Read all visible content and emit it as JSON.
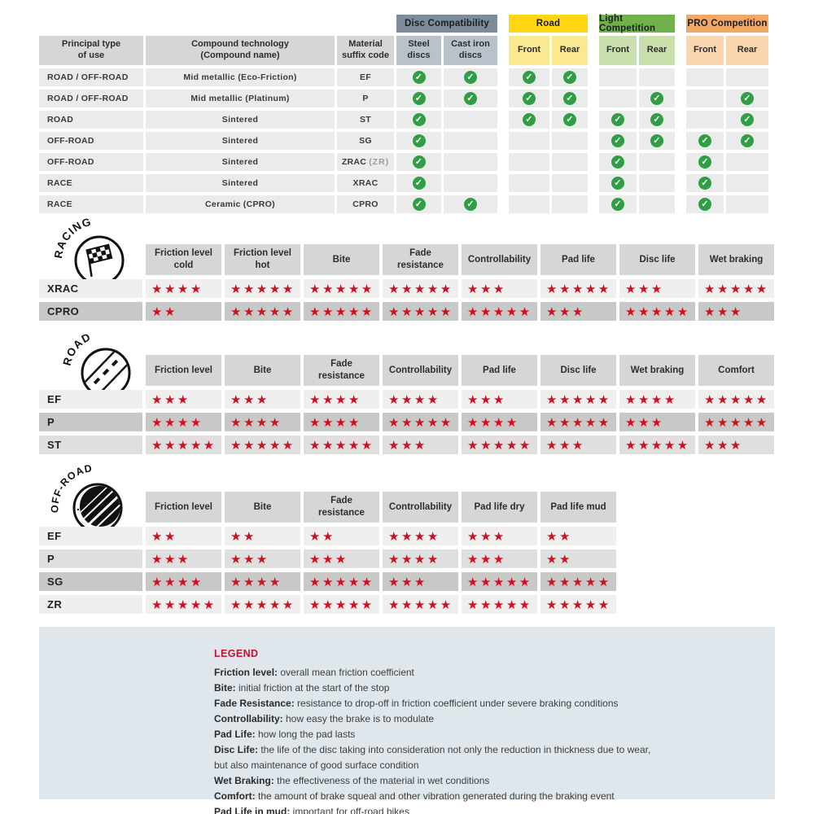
{
  "colors": {
    "check_green": "#2f9e44",
    "star_red": "#d30f1e",
    "disc_group": "#7c8c9a",
    "road_group": "#ffd60f",
    "light_group": "#71b14b",
    "pro_group": "#f2a765",
    "legend_bg": "#dfe7ec",
    "legend_title_red": "#c8102e"
  },
  "chart_data": [
    {
      "type": "table",
      "name": "compound_compatibility",
      "column_groups": [
        {
          "label": "Disc Compatibility",
          "color": "#7c8c9a"
        },
        {
          "label": "Road",
          "color": "#ffd60f"
        },
        {
          "label": "Light Competition",
          "color": "#71b14b"
        },
        {
          "label": "PRO Competition",
          "color": "#f2a765"
        }
      ],
      "columns": [
        "Principal type\nof use",
        "Compound technology\n(Compound name)",
        "Material\nsuffix code",
        "Steel\ndiscs",
        "Cast iron\ndiscs",
        "Front",
        "Rear",
        "Front",
        "Rear",
        "Front",
        "Rear"
      ],
      "check_columns": [
        "Steel discs",
        "Cast iron discs",
        "Road Front",
        "Road Rear",
        "Light Competition Front",
        "Light Competition Rear",
        "PRO Competition Front",
        "PRO Competition Rear"
      ],
      "rows": [
        {
          "use": "ROAD / OFF-ROAD",
          "compound": "Mid metallic (Eco-Friction)",
          "code": "EF",
          "code_note": "",
          "checks": [
            1,
            1,
            1,
            1,
            0,
            0,
            0,
            0
          ]
        },
        {
          "use": "ROAD / OFF-ROAD",
          "compound": "Mid metallic (Platinum)",
          "code": "P",
          "code_note": "",
          "checks": [
            1,
            1,
            1,
            1,
            0,
            1,
            0,
            1
          ]
        },
        {
          "use": "ROAD",
          "compound": "Sintered",
          "code": "ST",
          "code_note": "",
          "checks": [
            1,
            0,
            1,
            1,
            1,
            1,
            0,
            1
          ]
        },
        {
          "use": "OFF-ROAD",
          "compound": "Sintered",
          "code": "SG",
          "code_note": "",
          "checks": [
            1,
            0,
            0,
            0,
            1,
            1,
            1,
            1
          ]
        },
        {
          "use": "OFF-ROAD",
          "compound": "Sintered",
          "code": "ZRAC",
          "code_note": "(ZR)",
          "checks": [
            1,
            0,
            0,
            0,
            1,
            0,
            1,
            0
          ]
        },
        {
          "use": "RACE",
          "compound": "Sintered",
          "code": "XRAC",
          "code_note": "",
          "checks": [
            1,
            0,
            0,
            0,
            1,
            0,
            1,
            0
          ]
        },
        {
          "use": "RACE",
          "compound": "Ceramic (CPRO)",
          "code": "CPRO",
          "code_note": "",
          "checks": [
            1,
            1,
            0,
            0,
            1,
            0,
            1,
            0
          ]
        }
      ]
    },
    {
      "type": "table",
      "name": "racing_ratings",
      "title": "RACING",
      "icon": "racing-flag-icon",
      "max_stars": 5,
      "columns": [
        "Friction level cold",
        "Friction level hot",
        "Bite",
        "Fade resistance",
        "Controllability",
        "Pad life",
        "Disc life",
        "Wet braking"
      ],
      "rows": [
        {
          "code": "XRAC",
          "shade": "light",
          "stars": [
            4,
            5,
            5,
            5,
            3,
            5,
            3,
            5
          ]
        },
        {
          "code": "CPRO",
          "shade": "dark",
          "stars": [
            2,
            5,
            5,
            5,
            5,
            3,
            5,
            3
          ]
        }
      ]
    },
    {
      "type": "table",
      "name": "road_ratings",
      "title": "ROAD",
      "icon": "road-icon",
      "max_stars": 5,
      "columns": [
        "Friction level",
        "Bite",
        "Fade resistance",
        "Controllability",
        "Pad life",
        "Disc life",
        "Wet braking",
        "Comfort"
      ],
      "rows": [
        {
          "code": "EF",
          "shade": "light",
          "stars": [
            3,
            3,
            4,
            4,
            3,
            5,
            4,
            5
          ]
        },
        {
          "code": "P",
          "shade": "dark",
          "stars": [
            4,
            4,
            4,
            5,
            4,
            5,
            3,
            5
          ]
        },
        {
          "code": "ST",
          "shade": "medium",
          "stars": [
            5,
            5,
            5,
            3,
            5,
            3,
            5,
            3
          ]
        }
      ]
    },
    {
      "type": "table",
      "name": "offroad_ratings",
      "title": "OFF-ROAD",
      "icon": "offroad-icon",
      "max_stars": 5,
      "columns": [
        "Friction level",
        "Bite",
        "Fade resistance",
        "Controllability",
        "Pad life dry",
        "Pad life mud"
      ],
      "rows": [
        {
          "code": "EF",
          "shade": "light",
          "stars": [
            2,
            2,
            2,
            4,
            3,
            2
          ]
        },
        {
          "code": "P",
          "shade": "medium",
          "stars": [
            3,
            3,
            3,
            4,
            3,
            2
          ]
        },
        {
          "code": "SG",
          "shade": "dark",
          "stars": [
            4,
            4,
            5,
            3,
            5,
            5
          ]
        },
        {
          "code": "ZR",
          "shade": "light",
          "stars": [
            5,
            5,
            5,
            5,
            5,
            5
          ]
        }
      ]
    }
  ],
  "legend": {
    "title": "LEGEND",
    "items": [
      {
        "term": "Friction level",
        "def": "overall mean friction coefficient"
      },
      {
        "term": "Bite",
        "def": "initial friction at the start of the stop"
      },
      {
        "term": "Fade Resistance",
        "def": "resistance to drop-off in friction coefficient under severe braking conditions"
      },
      {
        "term": "Controllability",
        "def": "how easy the brake is to modulate"
      },
      {
        "term": "Pad Life",
        "def": "how long the pad lasts"
      },
      {
        "term": "Disc Life",
        "def": "the life of the disc taking into consideration not only the reduction in thickness due to wear,\nbut also maintenance of good surface condition"
      },
      {
        "term": "Wet Braking",
        "def": "the effectiveness of the material in wet conditions"
      },
      {
        "term": "Comfort",
        "def": "the amount of brake squeal and other vibration generated during the braking event"
      },
      {
        "term": "Pad Life in mud",
        "def": "important for off-road bikes"
      }
    ]
  }
}
